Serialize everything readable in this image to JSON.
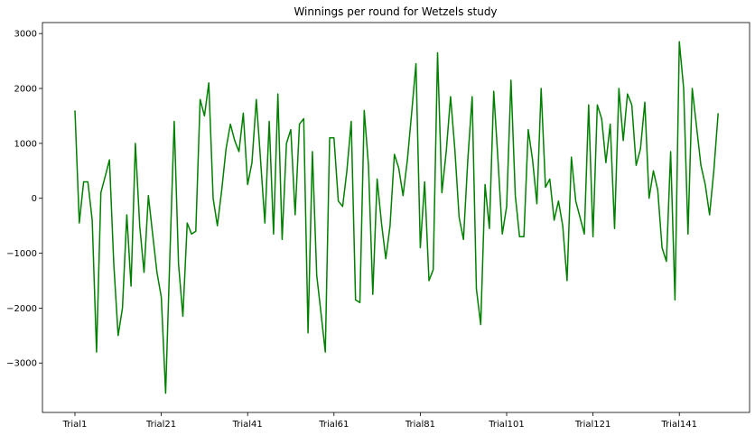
{
  "chart_data": {
    "type": "line",
    "title": "Winnings per round for Wetzels study",
    "xlabel": "",
    "ylabel": "",
    "ylim": [
      -3900,
      3200
    ],
    "grid": false,
    "legend": "none",
    "series": [
      {
        "color": "#008000",
        "values": [
          1600,
          -450,
          300,
          300,
          -400,
          -2800,
          100,
          400,
          700,
          -1200,
          -2500,
          -2000,
          -300,
          -1600,
          1000,
          -500,
          -1350,
          50,
          -650,
          -1350,
          -1800,
          -3550,
          -1000,
          1400,
          -1200,
          -2150,
          -450,
          -650,
          -600,
          1800,
          1500,
          2100,
          0,
          -500,
          150,
          900,
          1350,
          1050,
          850,
          1550,
          250,
          650,
          1800,
          700,
          -450,
          1400,
          -650,
          1900,
          -750,
          1000,
          1250,
          -300,
          1350,
          1450,
          -2450,
          850,
          -1400,
          -2100,
          -2800,
          1100,
          1100,
          -50,
          -150,
          500,
          1400,
          -1850,
          -1900,
          1600,
          600,
          -1750,
          350,
          -450,
          -1100,
          -500,
          800,
          550,
          50,
          700,
          1550,
          2450,
          -900,
          300,
          -1500,
          -1300,
          2650,
          100,
          850,
          1850,
          900,
          -350,
          -750,
          700,
          1850,
          -1650,
          -2300,
          250,
          -550,
          1950,
          700,
          -650,
          -150,
          2150,
          50,
          -700,
          -700,
          1250,
          700,
          -100,
          2000,
          200,
          350,
          -400,
          -50,
          -500,
          -1500,
          750,
          -50,
          -350,
          -650,
          1700,
          -700,
          1700,
          1450,
          650,
          1350,
          -550,
          2000,
          1050,
          1900,
          1700,
          600,
          900,
          1750,
          0,
          500,
          150,
          -900,
          -1150,
          850,
          -1850,
          2850,
          2000,
          -650,
          2000,
          1300,
          600,
          250,
          -300,
          500,
          1550
        ]
      }
    ],
    "x_tick_labels": [
      "Trial1",
      "Trial21",
      "Trial41",
      "Trial61",
      "Trial81",
      "Trial101",
      "Trial121",
      "Trial141"
    ],
    "y_tick_values": [
      3000,
      2000,
      1000,
      0,
      -1000,
      -2000,
      -3000
    ],
    "y_tick_labels": [
      "3000",
      "2000",
      "1000",
      "0",
      "−1000",
      "−2000",
      "−3000"
    ]
  }
}
